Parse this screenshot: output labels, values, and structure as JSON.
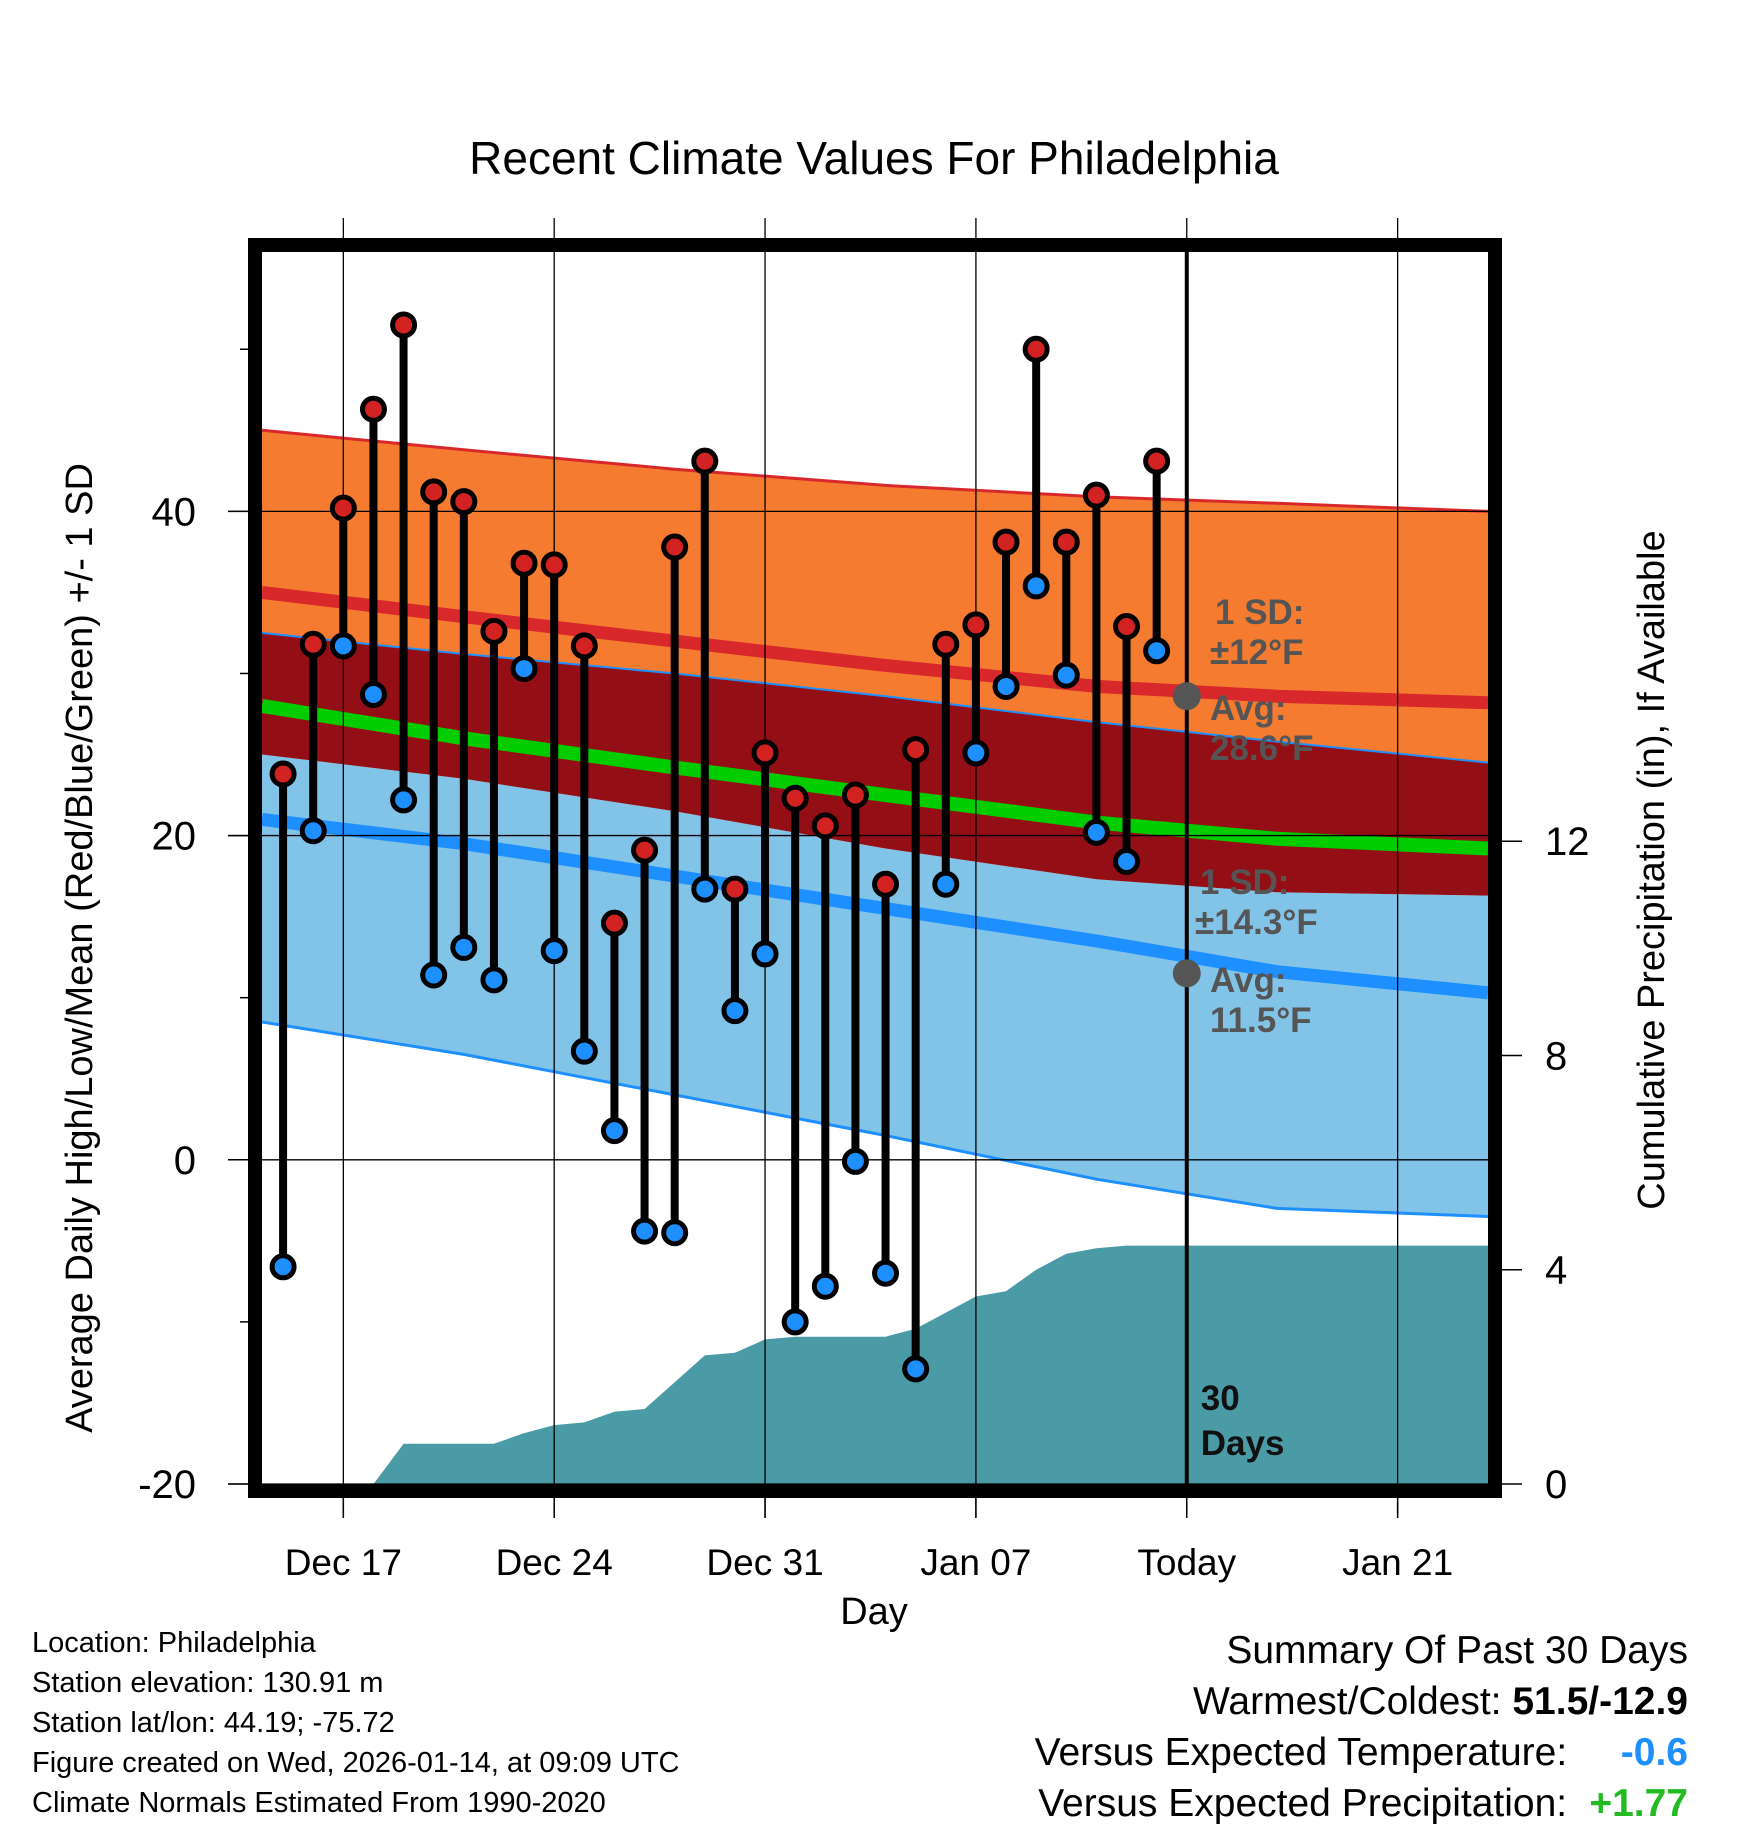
{
  "chart_data": {
    "type": "line",
    "title": "Recent Climate Values For Philadelphia",
    "xlabel": "Day",
    "ylabel": "Average Daily High/Low/Mean (Red/Blue/Green) +/- 1 SD",
    "y2label": "Cumulative Precipitation (in), If Available",
    "x_tick_labels": [
      "Dec 17",
      "Dec 24",
      "Dec 31",
      "Jan 07",
      "Today",
      "Jan 21"
    ],
    "x_tick_days": [
      3,
      10,
      17,
      24,
      31,
      38
    ],
    "x_range": [
      0.3,
      41.0
    ],
    "ylim": [
      -20,
      56
    ],
    "y_ticks": [
      -20,
      0,
      20,
      40
    ],
    "y_minor_ticks": [
      -10,
      10,
      30,
      50
    ],
    "y2lim": [
      0,
      23
    ],
    "y2_ticks": [
      0,
      4,
      8,
      12
    ],
    "today_day": 31,
    "today_label": "30\nDays",
    "observations": {
      "days": [
        1,
        2,
        3,
        4,
        5,
        6,
        7,
        8,
        9,
        10,
        11,
        12,
        13,
        14,
        15,
        16,
        17,
        18,
        19,
        20,
        21,
        22,
        23,
        24,
        25,
        26,
        27,
        28,
        29,
        30
      ],
      "highs": [
        23.8,
        31.8,
        40.2,
        46.3,
        51.5,
        41.2,
        40.6,
        32.6,
        36.8,
        36.7,
        31.7,
        14.6,
        19.1,
        37.8,
        43.1,
        16.7,
        25.1,
        22.3,
        20.6,
        22.5,
        17.0,
        25.3,
        31.8,
        33.0,
        38.1,
        50.0,
        38.1,
        41.0,
        32.9,
        43.1
      ],
      "lows": [
        -6.6,
        20.3,
        31.7,
        28.7,
        22.2,
        11.4,
        13.1,
        11.1,
        30.3,
        12.9,
        6.7,
        1.8,
        -4.4,
        -4.5,
        16.7,
        9.2,
        12.7,
        -10.0,
        -7.8,
        -0.1,
        -7.0,
        -12.9,
        17.0,
        25.1,
        29.2,
        35.4,
        29.9,
        20.2,
        18.4,
        31.4
      ]
    },
    "normals": {
      "days": [
        0.3,
        7,
        14,
        21,
        28,
        34,
        41
      ],
      "high_mean": [
        35.0,
        33.5,
        32.0,
        30.5,
        29.2,
        28.6,
        28.2
      ],
      "high_upper": [
        45.0,
        43.8,
        42.6,
        41.6,
        40.9,
        40.5,
        40.0
      ],
      "high_lower": [
        32.5,
        31.2,
        30.0,
        28.6,
        27.0,
        25.8,
        24.5
      ],
      "mean": [
        28.0,
        26.0,
        24.2,
        22.5,
        20.8,
        19.8,
        19.2
      ],
      "low_mean": [
        21.0,
        19.5,
        17.5,
        15.5,
        13.5,
        11.6,
        10.3
      ],
      "low_upper": [
        25.0,
        23.5,
        21.5,
        19.2,
        17.3,
        16.5,
        16.3
      ],
      "low_lower": [
        8.5,
        6.5,
        4.0,
        1.5,
        -1.2,
        -3.0,
        -3.5
      ]
    },
    "precipitation": {
      "days": [
        0.3,
        4,
        5,
        8,
        9,
        10,
        11,
        12,
        13,
        14,
        15,
        16,
        17,
        18,
        19,
        20,
        21,
        22,
        23,
        24,
        25,
        26,
        27,
        28,
        29,
        30,
        31,
        32,
        33,
        41
      ],
      "cumulative": [
        0,
        0,
        0.75,
        0.75,
        0.95,
        1.1,
        1.15,
        1.35,
        1.4,
        1.9,
        2.4,
        2.45,
        2.7,
        2.75,
        2.75,
        2.75,
        2.75,
        2.9,
        3.2,
        3.5,
        3.6,
        4.0,
        4.3,
        4.4,
        4.45,
        4.45,
        4.45,
        4.45,
        4.45,
        4.45
      ]
    },
    "annotations": {
      "high_sd_label": "1 SD:",
      "high_sd_value": "±12°F",
      "high_avg_label": "Avg:",
      "high_avg_value": "28.6°F",
      "high_avg": 28.6,
      "low_sd_label": "1 SD:",
      "low_sd_value": "±14.3°F",
      "low_avg_label": "Avg:",
      "low_avg_value": "11.5°F",
      "low_avg": 11.5
    },
    "colors": {
      "high_band": "#f47b30",
      "high_line": "#d9282b",
      "overlap_band": "#930f15",
      "mean_line": "#00cc00",
      "low_band": "#82c3e8",
      "low_line": "#1e8fff",
      "precip": "#4a9ba6",
      "high_point": "#d22222",
      "low_point": "#1e8fff",
      "annotation": "#555555"
    }
  },
  "footer": {
    "location": "Location: Philadelphia",
    "elevation": "Station elevation: 130.91 m",
    "latlon": "Station lat/lon: 44.19; -75.72",
    "created": "Figure created on Wed, 2026-01-14, at 09:09 UTC",
    "normals": "Climate Normals Estimated From 1990-2020"
  },
  "summary": {
    "title": "Summary Of Past 30 Days",
    "warm_cold_label": "Warmest/Coldest:",
    "warm_cold_value": "51.5/-12.9",
    "temp_label": "Versus Expected Temperature:",
    "temp_value": "-0.6",
    "temp_color": "#1e8fff",
    "precip_label": "Versus Expected Precipitation:",
    "precip_value": "+1.77",
    "precip_color": "#22bb22"
  }
}
